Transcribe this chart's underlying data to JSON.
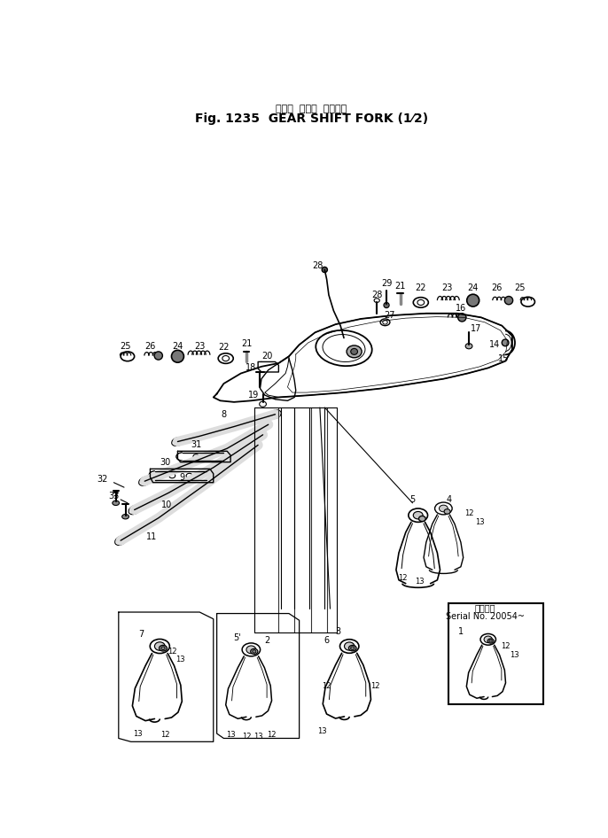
{
  "title_japanese": "キャー  シフト  フォーク",
  "title_english": "Fig. 1235  GEAR SHIFT FORK (1⁄2)",
  "background_color": "#ffffff",
  "fig_width": 6.86,
  "fig_height": 9.46,
  "dpi": 100,
  "serial_note_jp": "適用号機",
  "serial_note_en": "Serial No. 20054~"
}
